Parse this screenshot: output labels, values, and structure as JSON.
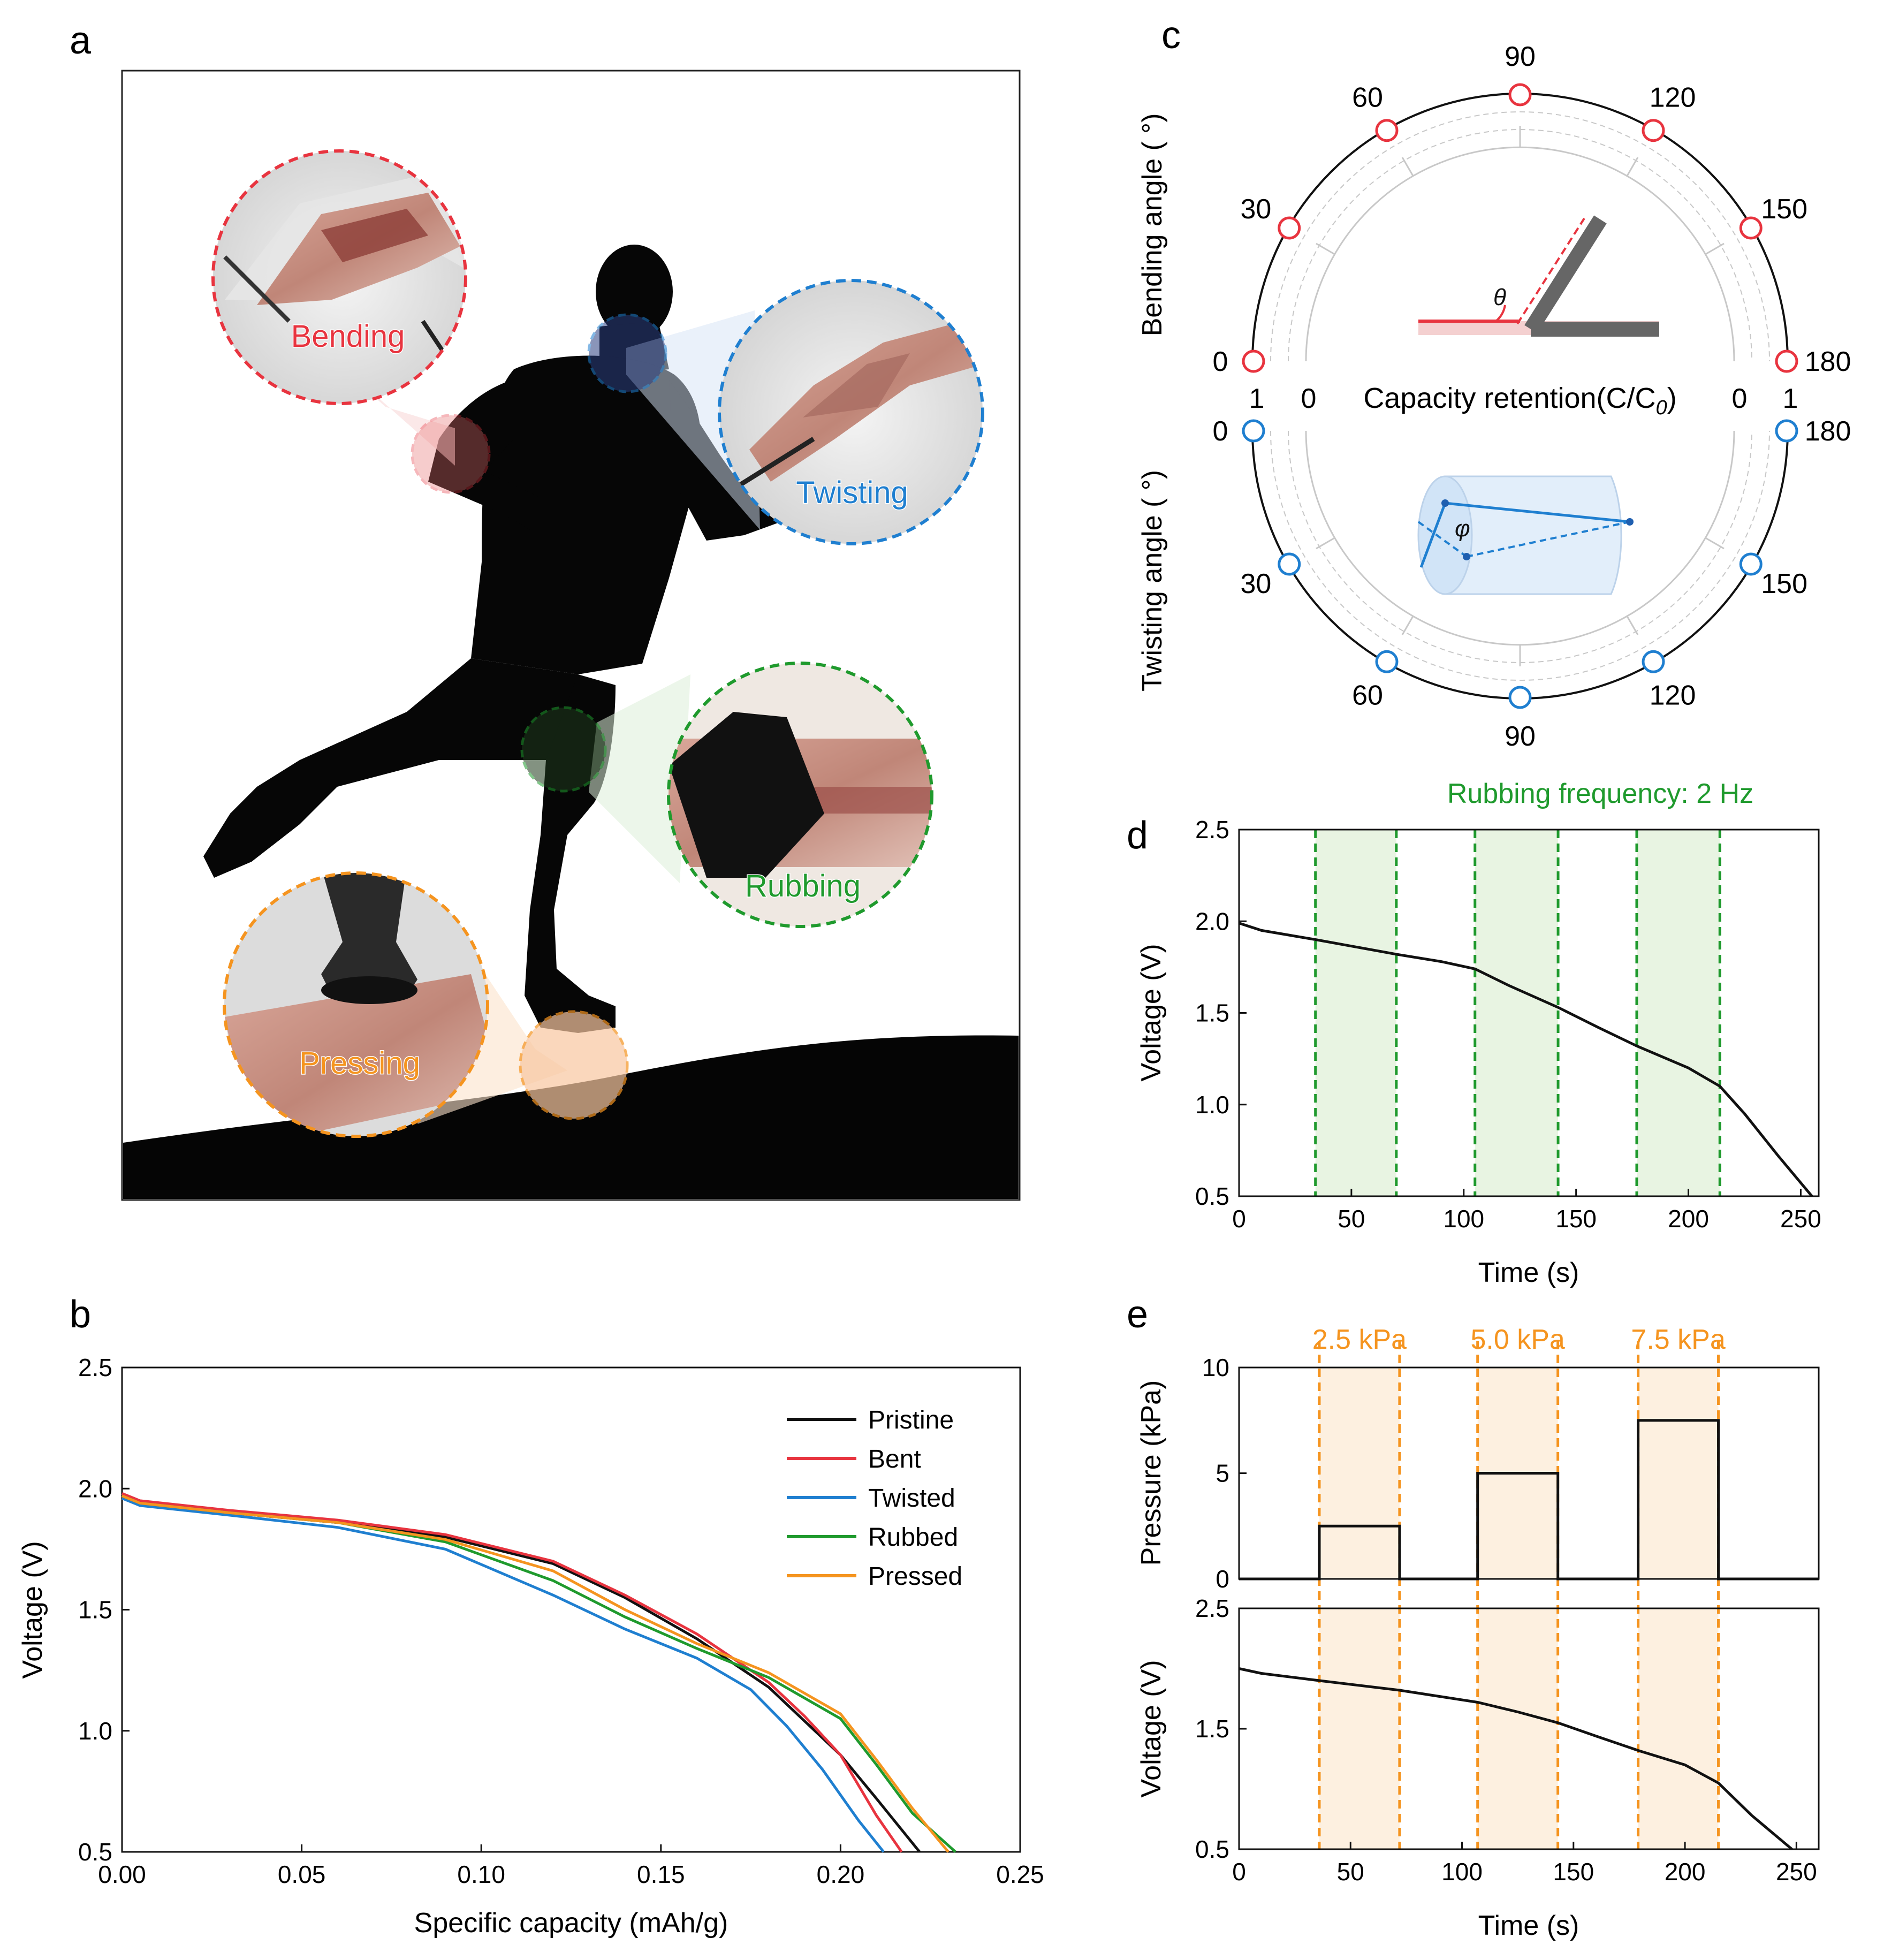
{
  "panel_labels": {
    "a": "a",
    "b": "b",
    "c": "c",
    "d": "d",
    "e": "e"
  },
  "colors": {
    "red": "#e8343f",
    "blue": "#1f7fd0",
    "green": "#1f9a2d",
    "orange": "#f5941f",
    "black": "#111111",
    "green_band": "#e8f4e2",
    "orange_band": "#fdf0e0",
    "grid": "#c8c8c8"
  },
  "panel_a": {
    "callouts": [
      {
        "label": "Bending",
        "color": "#e8343f"
      },
      {
        "label": "Twisting",
        "color": "#1f7fd0"
      },
      {
        "label": "Rubbing",
        "color": "#1f9a2d"
      },
      {
        "label": "Pressing",
        "color": "#f5941f"
      }
    ]
  },
  "chart_data": [
    {
      "id": "b",
      "type": "line",
      "title": "",
      "xlabel": "Specific capacity (mAh/g)",
      "ylabel": "Voltage (V)",
      "xlim": [
        0,
        0.25
      ],
      "ylim": [
        0.5,
        2.5
      ],
      "xticks": [
        "0.00",
        "0.05",
        "0.10",
        "0.15",
        "0.20",
        "0.25"
      ],
      "yticks": [
        "0.5",
        "1.0",
        "1.5",
        "2.0",
        "2.5"
      ],
      "legend_position": "top-right",
      "series": [
        {
          "name": "Pristine",
          "color": "#111111",
          "x": [
            0,
            0.005,
            0.03,
            0.06,
            0.09,
            0.12,
            0.14,
            0.16,
            0.18,
            0.19,
            0.2,
            0.21,
            0.222
          ],
          "y": [
            1.98,
            1.94,
            1.9,
            1.86,
            1.8,
            1.69,
            1.55,
            1.38,
            1.18,
            1.04,
            0.9,
            0.72,
            0.5
          ]
        },
        {
          "name": "Bent",
          "color": "#e8343f",
          "x": [
            0,
            0.005,
            0.03,
            0.06,
            0.09,
            0.12,
            0.14,
            0.16,
            0.18,
            0.19,
            0.2,
            0.21,
            0.217
          ],
          "y": [
            1.98,
            1.95,
            1.91,
            1.87,
            1.81,
            1.7,
            1.56,
            1.4,
            1.2,
            1.06,
            0.9,
            0.65,
            0.5
          ]
        },
        {
          "name": "Twisted",
          "color": "#1f7fd0",
          "x": [
            0,
            0.005,
            0.03,
            0.06,
            0.09,
            0.12,
            0.14,
            0.16,
            0.175,
            0.185,
            0.195,
            0.205,
            0.212
          ],
          "y": [
            1.96,
            1.93,
            1.89,
            1.84,
            1.75,
            1.56,
            1.42,
            1.3,
            1.17,
            1.02,
            0.84,
            0.63,
            0.5
          ]
        },
        {
          "name": "Rubbed",
          "color": "#1f9a2d",
          "x": [
            0,
            0.005,
            0.03,
            0.06,
            0.09,
            0.12,
            0.14,
            0.16,
            0.18,
            0.2,
            0.21,
            0.22,
            0.232
          ],
          "y": [
            1.97,
            1.94,
            1.9,
            1.86,
            1.78,
            1.62,
            1.47,
            1.34,
            1.22,
            1.05,
            0.86,
            0.66,
            0.5
          ]
        },
        {
          "name": "Pressed",
          "color": "#f5941f",
          "x": [
            0,
            0.005,
            0.03,
            0.06,
            0.09,
            0.12,
            0.14,
            0.16,
            0.18,
            0.2,
            0.21,
            0.22,
            0.23
          ],
          "y": [
            1.97,
            1.94,
            1.9,
            1.86,
            1.79,
            1.66,
            1.5,
            1.36,
            1.24,
            1.07,
            0.88,
            0.68,
            0.5
          ]
        }
      ]
    },
    {
      "id": "c",
      "type": "scatter",
      "subtype": "polar-semicircle",
      "center_label": "Capacity retention(C/C",
      "center_label_sub": "0",
      "center_label_end": ")",
      "radial_tick_labels": {
        "outer": "1",
        "inner": "0"
      },
      "top": {
        "axis_label": "Bending angle ( °)",
        "inset_symbol": "θ",
        "angle_ticks": [
          "0",
          "30",
          "60",
          "90",
          "120",
          "150",
          "180"
        ],
        "points": [
          {
            "angle": 0,
            "retention": 0.98
          },
          {
            "angle": 30,
            "retention": 0.98
          },
          {
            "angle": 60,
            "retention": 0.98
          },
          {
            "angle": 90,
            "retention": 0.98
          },
          {
            "angle": 120,
            "retention": 0.98
          },
          {
            "angle": 150,
            "retention": 0.98
          },
          {
            "angle": 180,
            "retention": 0.98
          }
        ],
        "color": "#e8343f"
      },
      "bottom": {
        "axis_label": "Twisting angle ( °)",
        "inset_symbol": "φ",
        "angle_ticks": [
          "0",
          "30",
          "60",
          "90",
          "120",
          "150",
          "180"
        ],
        "points": [
          {
            "angle": 0,
            "retention": 0.98
          },
          {
            "angle": 30,
            "retention": 0.98
          },
          {
            "angle": 60,
            "retention": 0.98
          },
          {
            "angle": 90,
            "retention": 0.98
          },
          {
            "angle": 120,
            "retention": 0.98
          },
          {
            "angle": 150,
            "retention": 0.98
          },
          {
            "angle": 180,
            "retention": 0.98
          }
        ],
        "color": "#1f7fd0"
      }
    },
    {
      "id": "d",
      "type": "line",
      "title": "Rubbing frequency: 2 Hz",
      "xlabel": "Time (s)",
      "ylabel": "Voltage (V)",
      "xlim": [
        0,
        258
      ],
      "ylim": [
        0.5,
        2.5
      ],
      "xticks": [
        "0",
        "50",
        "100",
        "150",
        "200",
        "250"
      ],
      "yticks": [
        "0.5",
        "1.0",
        "1.5",
        "2.0",
        "2.5"
      ],
      "bands": [
        [
          34,
          70
        ],
        [
          105,
          142
        ],
        [
          177,
          214
        ]
      ],
      "series": [
        {
          "name": "Voltage",
          "color": "#111111",
          "x": [
            0,
            10,
            34,
            70,
            90,
            105,
            120,
            142,
            160,
            177,
            200,
            214,
            225,
            240,
            255
          ],
          "y": [
            1.99,
            1.95,
            1.9,
            1.82,
            1.78,
            1.74,
            1.65,
            1.53,
            1.42,
            1.32,
            1.2,
            1.1,
            0.95,
            0.72,
            0.5
          ]
        }
      ]
    },
    {
      "id": "e-top",
      "type": "line",
      "title": "",
      "xlabel": "",
      "ylabel": "Pressure (kPa)",
      "xlim": [
        0,
        260
      ],
      "ylim": [
        0,
        10
      ],
      "yticks": [
        "0",
        "5",
        "10"
      ],
      "band_labels": [
        "2.5 kPa",
        "5.0 kPa",
        "7.5 kPa"
      ],
      "bands": [
        [
          36,
          72
        ],
        [
          107,
          143
        ],
        [
          179,
          215
        ]
      ],
      "series": [
        {
          "name": "Pressure",
          "color": "#111111",
          "x": [
            0,
            36,
            36,
            72,
            72,
            107,
            107,
            143,
            143,
            179,
            179,
            215,
            215,
            260
          ],
          "y": [
            0,
            0,
            2.5,
            2.5,
            0,
            0,
            5.0,
            5.0,
            0,
            0,
            7.5,
            7.5,
            0,
            0
          ]
        }
      ]
    },
    {
      "id": "e-bottom",
      "type": "line",
      "title": "",
      "xlabel": "Time (s)",
      "ylabel": "Voltage (V)",
      "xlim": [
        0,
        260
      ],
      "ylim": [
        0.5,
        2.5
      ],
      "xticks": [
        "0",
        "50",
        "100",
        "150",
        "200",
        "250"
      ],
      "yticks": [
        "0.5",
        "1.5",
        "2.5"
      ],
      "bands": [
        [
          36,
          72
        ],
        [
          107,
          143
        ],
        [
          179,
          215
        ]
      ],
      "series": [
        {
          "name": "Voltage",
          "color": "#111111",
          "x": [
            0,
            10,
            36,
            72,
            107,
            125,
            143,
            160,
            179,
            200,
            215,
            230,
            248
          ],
          "y": [
            2.0,
            1.96,
            1.9,
            1.82,
            1.72,
            1.64,
            1.55,
            1.44,
            1.32,
            1.2,
            1.05,
            0.78,
            0.5
          ]
        }
      ]
    }
  ]
}
